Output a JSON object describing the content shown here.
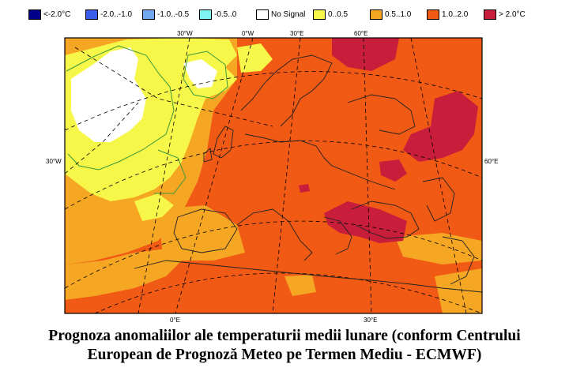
{
  "legend": {
    "items": [
      {
        "label": "<-2.0°C",
        "color": "#00008b"
      },
      {
        "label": "-2.0..-1.0",
        "color": "#3b5ee8"
      },
      {
        "label": "-1.0..-0.5",
        "color": "#73a8f0"
      },
      {
        "label": "-0.5..0",
        "color": "#7ff2f2"
      },
      {
        "label": "No Signal",
        "color": "#ffffff"
      },
      {
        "label": "0..0.5",
        "color": "#f7f74a"
      },
      {
        "label": "0.5..1.0",
        "color": "#f5a623"
      },
      {
        "label": "1.0..2.0",
        "color": "#f05a14"
      },
      {
        "label": "> 2.0°C",
        "color": "#c81e3c"
      }
    ]
  },
  "map": {
    "top_labels": [
      "30°W",
      "0°W",
      "30°E",
      "60°E"
    ],
    "left_label": "30°W",
    "right_label": "60°E",
    "bottom_labels": [
      "0°E",
      "30°E"
    ]
  },
  "caption": {
    "line1": "Prognoza anomaliilor ale temperaturii medii lunare (conform Centrului",
    "line2": "European de Prognoză Meteo pe Termen Mediu - ECMWF)"
  }
}
